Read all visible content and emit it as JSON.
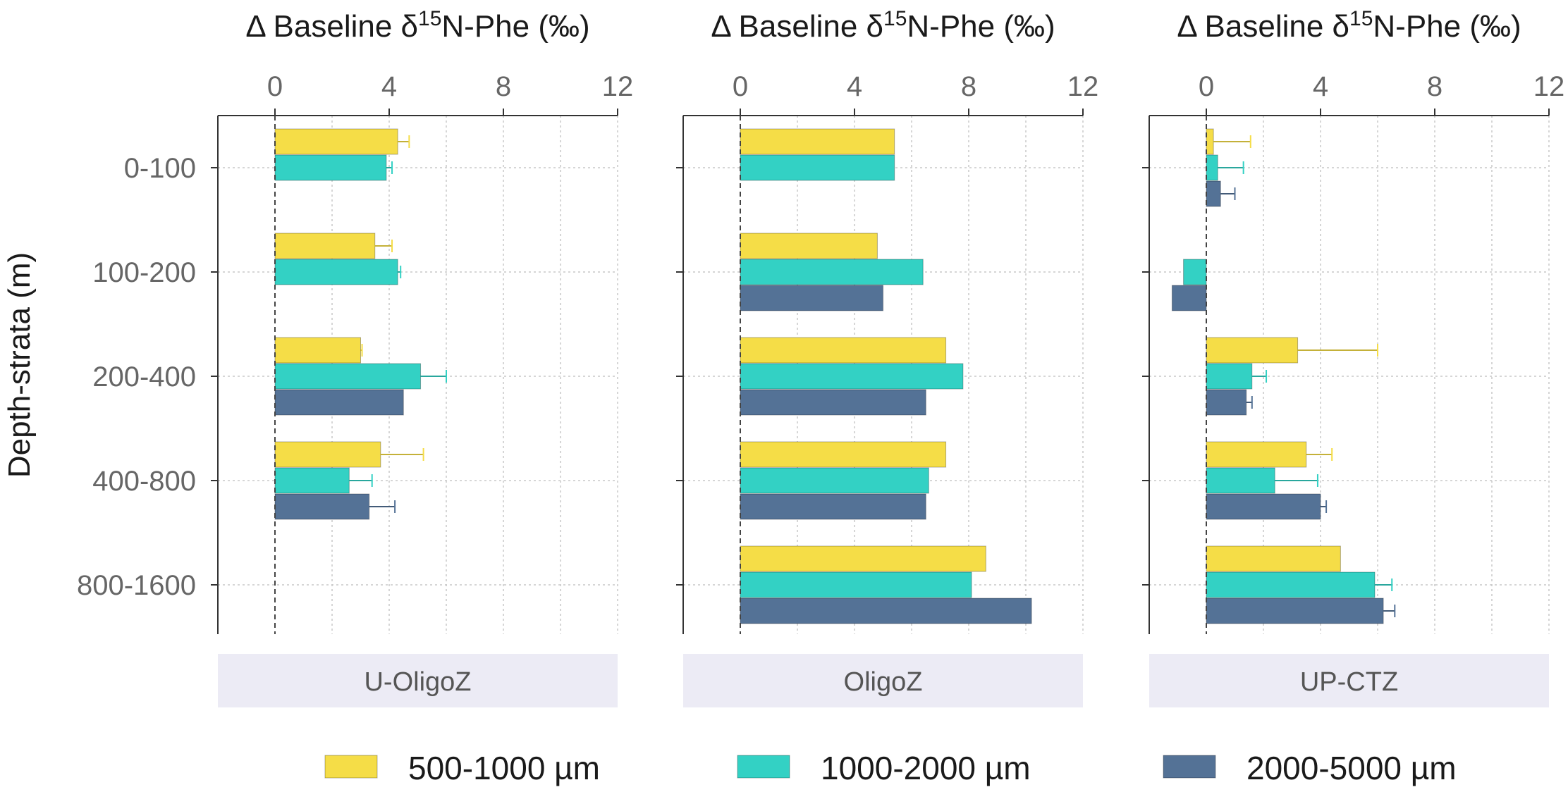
{
  "chart_data": {
    "type": "bar",
    "orientation": "horizontal",
    "y_axis_title": "Depth-strata (m)",
    "x_axis_title": "Δ Baseline δ15N-Phe (‰)",
    "x_axis_title_parts": {
      "prefix": "Δ Baseline δ",
      "superscript": "15",
      "suffix": "N-Phe (‰)"
    },
    "categories": [
      "0-100",
      "100-200",
      "200-400",
      "400-800",
      "800-1600"
    ],
    "xlim": [
      -2,
      12
    ],
    "xticks": [
      0,
      4,
      8,
      12
    ],
    "grid": true,
    "legend_position": "bottom",
    "series_names": [
      "500-1000 µm",
      "1000-2000 µm",
      "2000-5000 µm"
    ],
    "colors": {
      "500-1000 µm": "#f5dd47",
      "1000-2000 µm": "#33d1c4",
      "2000-5000 µm": "#547296"
    },
    "panels": [
      {
        "label": "U-OligoZ",
        "series": [
          {
            "name": "500-1000 µm",
            "values": [
              4.3,
              3.5,
              3.0,
              3.7,
              null
            ],
            "errors": [
              0.4,
              0.6,
              0.05,
              1.5,
              null
            ]
          },
          {
            "name": "1000-2000 µm",
            "values": [
              3.9,
              4.3,
              5.1,
              2.6,
              null
            ],
            "errors": [
              0.2,
              0.1,
              0.9,
              0.8,
              null
            ]
          },
          {
            "name": "2000-5000 µm",
            "values": [
              null,
              null,
              4.5,
              3.3,
              null
            ],
            "errors": [
              null,
              null,
              0.0,
              0.9,
              null
            ]
          }
        ]
      },
      {
        "label": "OligoZ",
        "series": [
          {
            "name": "500-1000 µm",
            "values": [
              5.4,
              4.8,
              7.2,
              7.2,
              8.6
            ],
            "errors": [
              0,
              0,
              0,
              0,
              0
            ]
          },
          {
            "name": "1000-2000 µm",
            "values": [
              5.4,
              6.4,
              7.8,
              6.6,
              8.1
            ],
            "errors": [
              0,
              0,
              0,
              0,
              0
            ]
          },
          {
            "name": "2000-5000 µm",
            "values": [
              null,
              5.0,
              6.5,
              6.5,
              10.2
            ],
            "errors": [
              null,
              0,
              0,
              0,
              0
            ]
          }
        ]
      },
      {
        "label": "UP-CTZ",
        "series": [
          {
            "name": "500-1000 µm",
            "values": [
              0.25,
              null,
              3.2,
              3.5,
              4.7
            ],
            "errors": [
              1.3,
              null,
              2.8,
              0.9,
              0.0
            ]
          },
          {
            "name": "1000-2000 µm",
            "values": [
              0.4,
              -0.8,
              1.6,
              2.4,
              5.9
            ],
            "errors": [
              0.9,
              0,
              0.5,
              1.5,
              0.6
            ]
          },
          {
            "name": "2000-5000 µm",
            "values": [
              0.5,
              -1.2,
              1.4,
              4.0,
              6.2
            ],
            "errors": [
              0.5,
              0,
              0.2,
              0.2,
              0.4
            ]
          }
        ]
      }
    ]
  }
}
